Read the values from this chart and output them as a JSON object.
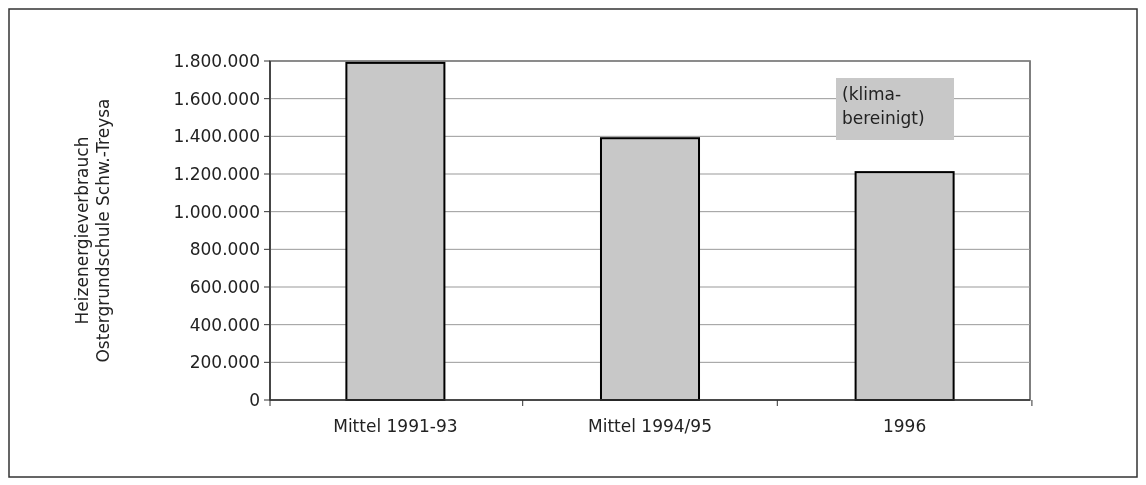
{
  "chart_data": {
    "type": "bar",
    "ylabel": "Heizenergieverbrauch\nOstergrundschule Schw.-Treysa",
    "categories": [
      "Mittel 1991-93",
      "Mittel 1994/95",
      "1996"
    ],
    "values": [
      1790000,
      1390000,
      1210000
    ],
    "color": "#c8c8c8",
    "ylim": [
      0,
      1800000
    ],
    "yticks": [
      {
        "value": 0,
        "label": "0"
      },
      {
        "value": 200000,
        "label": "200.000"
      },
      {
        "value": 400000,
        "label": "400.000"
      },
      {
        "value": 600000,
        "label": "600.000"
      },
      {
        "value": 800000,
        "label": "800.000"
      },
      {
        "value": 1000000,
        "label": "1.000.000"
      },
      {
        "value": 1200000,
        "label": "1.200.000"
      },
      {
        "value": 1400000,
        "label": "1.400.000"
      },
      {
        "value": 1600000,
        "label": "1.600.000"
      },
      {
        "value": 1800000,
        "label": "1.800.000"
      }
    ],
    "grid": "y",
    "annotations": [
      "(klima-\nbereinigt)"
    ]
  }
}
